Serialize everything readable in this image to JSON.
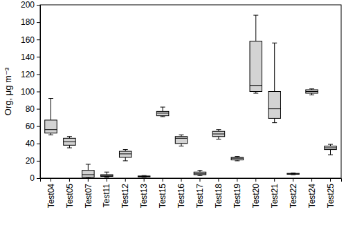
{
  "chart_data": {
    "type": "box",
    "y_label": "Org, μg m⁻³",
    "categories": [
      "Test04",
      "Test05",
      "Test07",
      "Test11",
      "Test12",
      "Test13",
      "Test15",
      "Test16",
      "Test17",
      "Test18",
      "Test19",
      "Test20",
      "Test21",
      "Test22",
      "Test24",
      "Test25"
    ],
    "min": [
      50,
      35,
      0,
      1,
      20,
      1,
      71,
      37,
      3,
      45,
      20,
      98,
      64,
      4,
      96,
      27
    ],
    "q1": [
      52,
      38,
      1,
      2,
      24,
      1.5,
      72,
      40,
      4,
      48,
      21,
      100,
      69,
      4.5,
      98,
      33
    ],
    "median": [
      56,
      42,
      4,
      3,
      28,
      2,
      75,
      46,
      5,
      51,
      23,
      107,
      80,
      5,
      100,
      35
    ],
    "q3": [
      67,
      46,
      9,
      4,
      31,
      2.5,
      77,
      48,
      7,
      54,
      24,
      158,
      100,
      5.5,
      102,
      37
    ],
    "max": [
      92,
      48,
      16,
      7,
      33,
      3,
      82,
      50,
      9,
      56,
      25,
      188,
      156,
      6,
      103,
      39
    ],
    "color": "#d3d3d3",
    "ylim": [
      0,
      200
    ],
    "yticks": [
      0,
      20,
      40,
      60,
      80,
      100,
      120,
      140,
      160,
      180,
      200
    ]
  }
}
